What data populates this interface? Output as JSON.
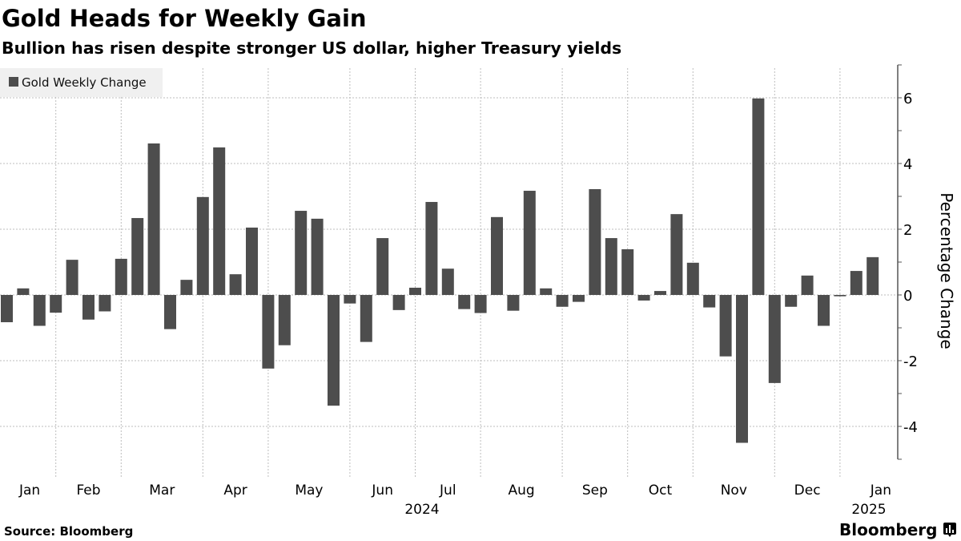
{
  "title": "Gold Heads for Weekly Gain",
  "subtitle": "Bullion has risen despite stronger US dollar, higher Treasury yields",
  "source": "Source: Bloomberg",
  "logo": "Bloomberg",
  "colors": {
    "bar": "#4d4d4d",
    "legend_bg": "#f0f0f0",
    "grid": "#bdbdbd"
  },
  "chart_data": {
    "type": "bar",
    "title": "Gold Heads for Weekly Gain",
    "legend": [
      "Gold Weekly Change"
    ],
    "legend_position": "top-left",
    "ylabel": "Percentage Change",
    "ylim": [
      -5,
      7
    ],
    "yticks": [
      -4,
      -2,
      0,
      2,
      4,
      6
    ],
    "ytick_labels": [
      "-4",
      "-2",
      "0",
      "2",
      "4",
      "6"
    ],
    "grid": true,
    "month_boundaries_week_index": [
      3,
      7,
      12,
      16,
      21,
      25,
      29,
      34,
      38,
      42,
      47,
      51
    ],
    "months": [
      "Jan",
      "Feb",
      "Mar",
      "Apr",
      "May",
      "Jun",
      "Jul",
      "Aug",
      "Sep",
      "Oct",
      "Nov",
      "Dec",
      "Jan"
    ],
    "years": [
      {
        "label": "2024",
        "month_index": 6
      },
      {
        "label": "2025",
        "month_index": 12
      }
    ],
    "series": [
      {
        "name": "Gold Weekly Change",
        "values": [
          -0.83,
          0.2,
          -0.94,
          -0.54,
          1.07,
          -0.75,
          -0.5,
          1.1,
          2.34,
          4.61,
          -1.04,
          0.46,
          2.98,
          4.49,
          0.63,
          2.05,
          -2.24,
          -1.53,
          2.56,
          2.32,
          -3.37,
          -0.26,
          -1.43,
          1.73,
          -0.46,
          0.22,
          2.83,
          0.8,
          -0.43,
          -0.55,
          2.37,
          -0.48,
          3.17,
          0.2,
          -0.36,
          -0.21,
          3.22,
          1.73,
          1.39,
          -0.17,
          0.12,
          2.46,
          0.98,
          -0.38,
          -1.87,
          -4.5,
          5.98,
          -2.68,
          -0.36,
          0.59,
          -0.94,
          -0.04,
          0.73,
          1.15
        ]
      }
    ]
  }
}
